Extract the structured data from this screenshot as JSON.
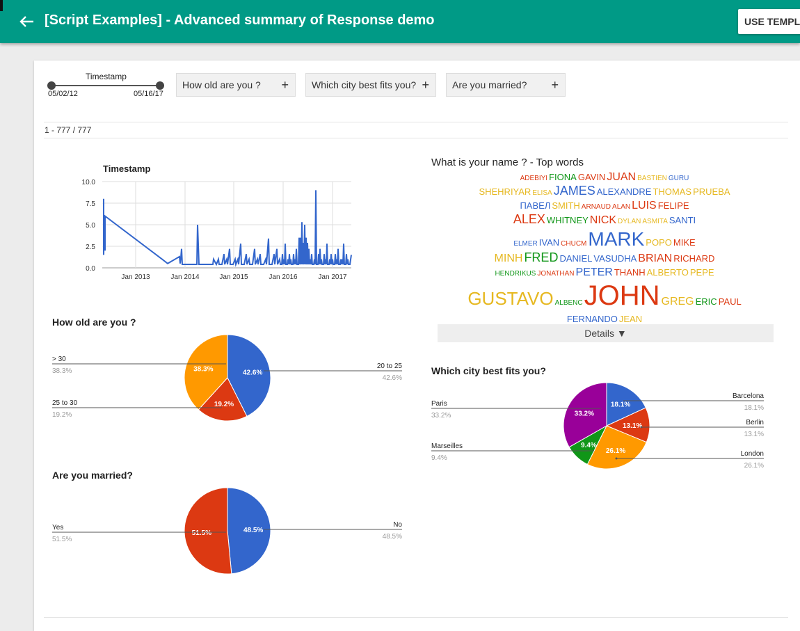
{
  "header": {
    "title": "[Script Examples] - Advanced summary of Response demo",
    "use_template": "USE TEMPLA"
  },
  "filters": {
    "timestamp": {
      "label": "Timestamp",
      "start": "05/02/12",
      "end": "05/16/17"
    },
    "age": "How old are you ?",
    "city": "Which city best fits you?",
    "married": "Are you married?"
  },
  "row_count": "1 - 777 / 777",
  "timestamp_chart": {
    "title": "Timestamp",
    "y_ticks": [
      "10.0",
      "7.5",
      "5.0",
      "2.5",
      "0.0"
    ],
    "x_ticks": [
      "Jan 2013",
      "Jan 2014",
      "Jan 2015",
      "Jan 2016",
      "Jan 2017"
    ]
  },
  "chart_data": [
    {
      "type": "line",
      "title": "Timestamp",
      "ylim": [
        0,
        10
      ],
      "x": [
        "May 2012",
        "Jan 2013",
        "Jan 2014",
        "Jan 2015",
        "Jan 2016",
        "Jan 2017",
        "May 2017"
      ],
      "note": "daily response counts, mostly 1-3 with peaks at 8 (May 2012) and 9 (mid 2016)"
    },
    {
      "type": "pie",
      "title": "How old are you ?",
      "categories": [
        "20 to 25",
        "25 to 30",
        "> 30"
      ],
      "values": [
        42.6,
        19.2,
        38.3
      ]
    },
    {
      "type": "pie",
      "title": "Are you married?",
      "categories": [
        "No",
        "Yes"
      ],
      "values": [
        48.5,
        51.5
      ]
    },
    {
      "type": "pie",
      "title": "Which city best fits you?",
      "categories": [
        "Barcelona",
        "Berlin",
        "London",
        "Marseilles",
        "Paris"
      ],
      "values": [
        18.1,
        13.1,
        26.1,
        9.4,
        33.2
      ]
    }
  ],
  "age_chart": {
    "title": "How old are you ?",
    "slices": [
      {
        "label": "20 to 25",
        "pct": "42.6%",
        "value": 42.6,
        "color": "#3366cc"
      },
      {
        "label": "25 to 30",
        "pct": "19.2%",
        "value": 19.2,
        "color": "#dc3912"
      },
      {
        "label": "> 30",
        "pct": "38.3%",
        "value": 38.3,
        "color": "#ff9900"
      }
    ]
  },
  "married_chart": {
    "title": "Are you married?",
    "slices": [
      {
        "label": "No",
        "pct": "48.5%",
        "value": 48.5,
        "color": "#3366cc"
      },
      {
        "label": "Yes",
        "pct": "51.5%",
        "value": 51.5,
        "color": "#dc3912"
      }
    ]
  },
  "city_chart": {
    "title": "Which city best fits you?",
    "slices": [
      {
        "label": "Barcelona",
        "pct": "18.1%",
        "value": 18.1,
        "color": "#3366cc"
      },
      {
        "label": "Berlin",
        "pct": "13.1%",
        "value": 13.1,
        "color": "#dc3912"
      },
      {
        "label": "London",
        "pct": "26.1%",
        "value": 26.1,
        "color": "#ff9900"
      },
      {
        "label": "Marseilles",
        "pct": "9.4%",
        "value": 9.4,
        "color": "#109618"
      },
      {
        "label": "Paris",
        "pct": "33.2%",
        "value": 33.2,
        "color": "#990099"
      }
    ]
  },
  "wordcloud": {
    "title": "What is your name ? - Top words",
    "details": "Details ▼",
    "lines": [
      [
        {
          "w": "ADEBIYI",
          "s": 10,
          "c": "#dc3912"
        },
        {
          "w": "FIONA",
          "s": 13,
          "c": "#109618"
        },
        {
          "w": "GAVIN",
          "s": 13,
          "c": "#dc3912"
        },
        {
          "w": "JUAN",
          "s": 16,
          "c": "#dc3912"
        },
        {
          "w": "BASTIEN",
          "s": 10,
          "c": "#e6b820"
        },
        {
          "w": "GURU",
          "s": 10,
          "c": "#3366cc"
        }
      ],
      [
        {
          "w": "SHEHRIYAR",
          "s": 13,
          "c": "#e6b820"
        },
        {
          "w": "ELISA",
          "s": 10,
          "c": "#e6b820"
        },
        {
          "w": "JAMES",
          "s": 18,
          "c": "#3366cc"
        },
        {
          "w": "ALEXANDRE",
          "s": 13,
          "c": "#3366cc"
        },
        {
          "w": "THOMAS",
          "s": 13,
          "c": "#e6b820"
        },
        {
          "w": "PRUEBA",
          "s": 13,
          "c": "#e6b820"
        }
      ],
      [
        {
          "w": "ПАВЕЛ",
          "s": 13,
          "c": "#3366cc"
        },
        {
          "w": "SMITH",
          "s": 13,
          "c": "#e6b820"
        },
        {
          "w": "ARNAUD",
          "s": 10,
          "c": "#dc3912"
        },
        {
          "w": "ALAN",
          "s": 10,
          "c": "#dc3912"
        },
        {
          "w": "LUIS",
          "s": 16,
          "c": "#dc3912"
        },
        {
          "w": "FELIPE",
          "s": 13,
          "c": "#dc3912"
        }
      ],
      [
        {
          "w": "ALEX",
          "s": 18,
          "c": "#dc3912"
        },
        {
          "w": "WHITNEY",
          "s": 13,
          "c": "#109618"
        },
        {
          "w": "NICK",
          "s": 16,
          "c": "#dc3912"
        },
        {
          "w": "DYLAN",
          "s": 10,
          "c": "#e6b820"
        },
        {
          "w": "ASMITA",
          "s": 10,
          "c": "#e6b820"
        },
        {
          "w": "SANTI",
          "s": 13,
          "c": "#3366cc"
        }
      ],
      [
        {
          "w": "ELMER",
          "s": 10,
          "c": "#3366cc"
        },
        {
          "w": "IVAN",
          "s": 13,
          "c": "#3366cc"
        },
        {
          "w": "CHUCM",
          "s": 10,
          "c": "#dc3912"
        },
        {
          "w": "MARK",
          "s": 28,
          "c": "#3366cc"
        },
        {
          "w": "POPO",
          "s": 13,
          "c": "#e6b820"
        },
        {
          "w": "MIKE",
          "s": 13,
          "c": "#dc3912"
        }
      ],
      [
        {
          "w": "MINH",
          "s": 16,
          "c": "#e6b820"
        },
        {
          "w": "FRED",
          "s": 18,
          "c": "#109618"
        },
        {
          "w": "DANIEL",
          "s": 13,
          "c": "#3366cc"
        },
        {
          "w": "VASUDHA",
          "s": 13,
          "c": "#3366cc"
        },
        {
          "w": "BRIAN",
          "s": 16,
          "c": "#dc3912"
        },
        {
          "w": "RICHARD",
          "s": 13,
          "c": "#dc3912"
        }
      ],
      [
        {
          "w": "HENDRIKUS",
          "s": 10,
          "c": "#109618"
        },
        {
          "w": "JONATHAN",
          "s": 10,
          "c": "#dc3912"
        },
        {
          "w": "PETER",
          "s": 16,
          "c": "#3366cc"
        },
        {
          "w": "THANH",
          "s": 13,
          "c": "#dc3912"
        },
        {
          "w": "ALBERTO",
          "s": 13,
          "c": "#e6b820"
        },
        {
          "w": "PEPE",
          "s": 13,
          "c": "#e6b820"
        }
      ],
      [
        {
          "w": "GUSTAVO",
          "s": 26,
          "c": "#e6b820"
        },
        {
          "w": "ALBENC",
          "s": 10,
          "c": "#109618"
        },
        {
          "w": "JOHN",
          "s": 40,
          "c": "#dc3912"
        },
        {
          "w": "GREG",
          "s": 16,
          "c": "#e6b820"
        },
        {
          "w": "ERIC",
          "s": 13,
          "c": "#109618"
        },
        {
          "w": "PAUL",
          "s": 13,
          "c": "#dc3912"
        }
      ],
      [
        {
          "w": "FERNANDO",
          "s": 13,
          "c": "#3366cc"
        },
        {
          "w": "JEAN",
          "s": 13,
          "c": "#e6b820"
        }
      ]
    ]
  }
}
